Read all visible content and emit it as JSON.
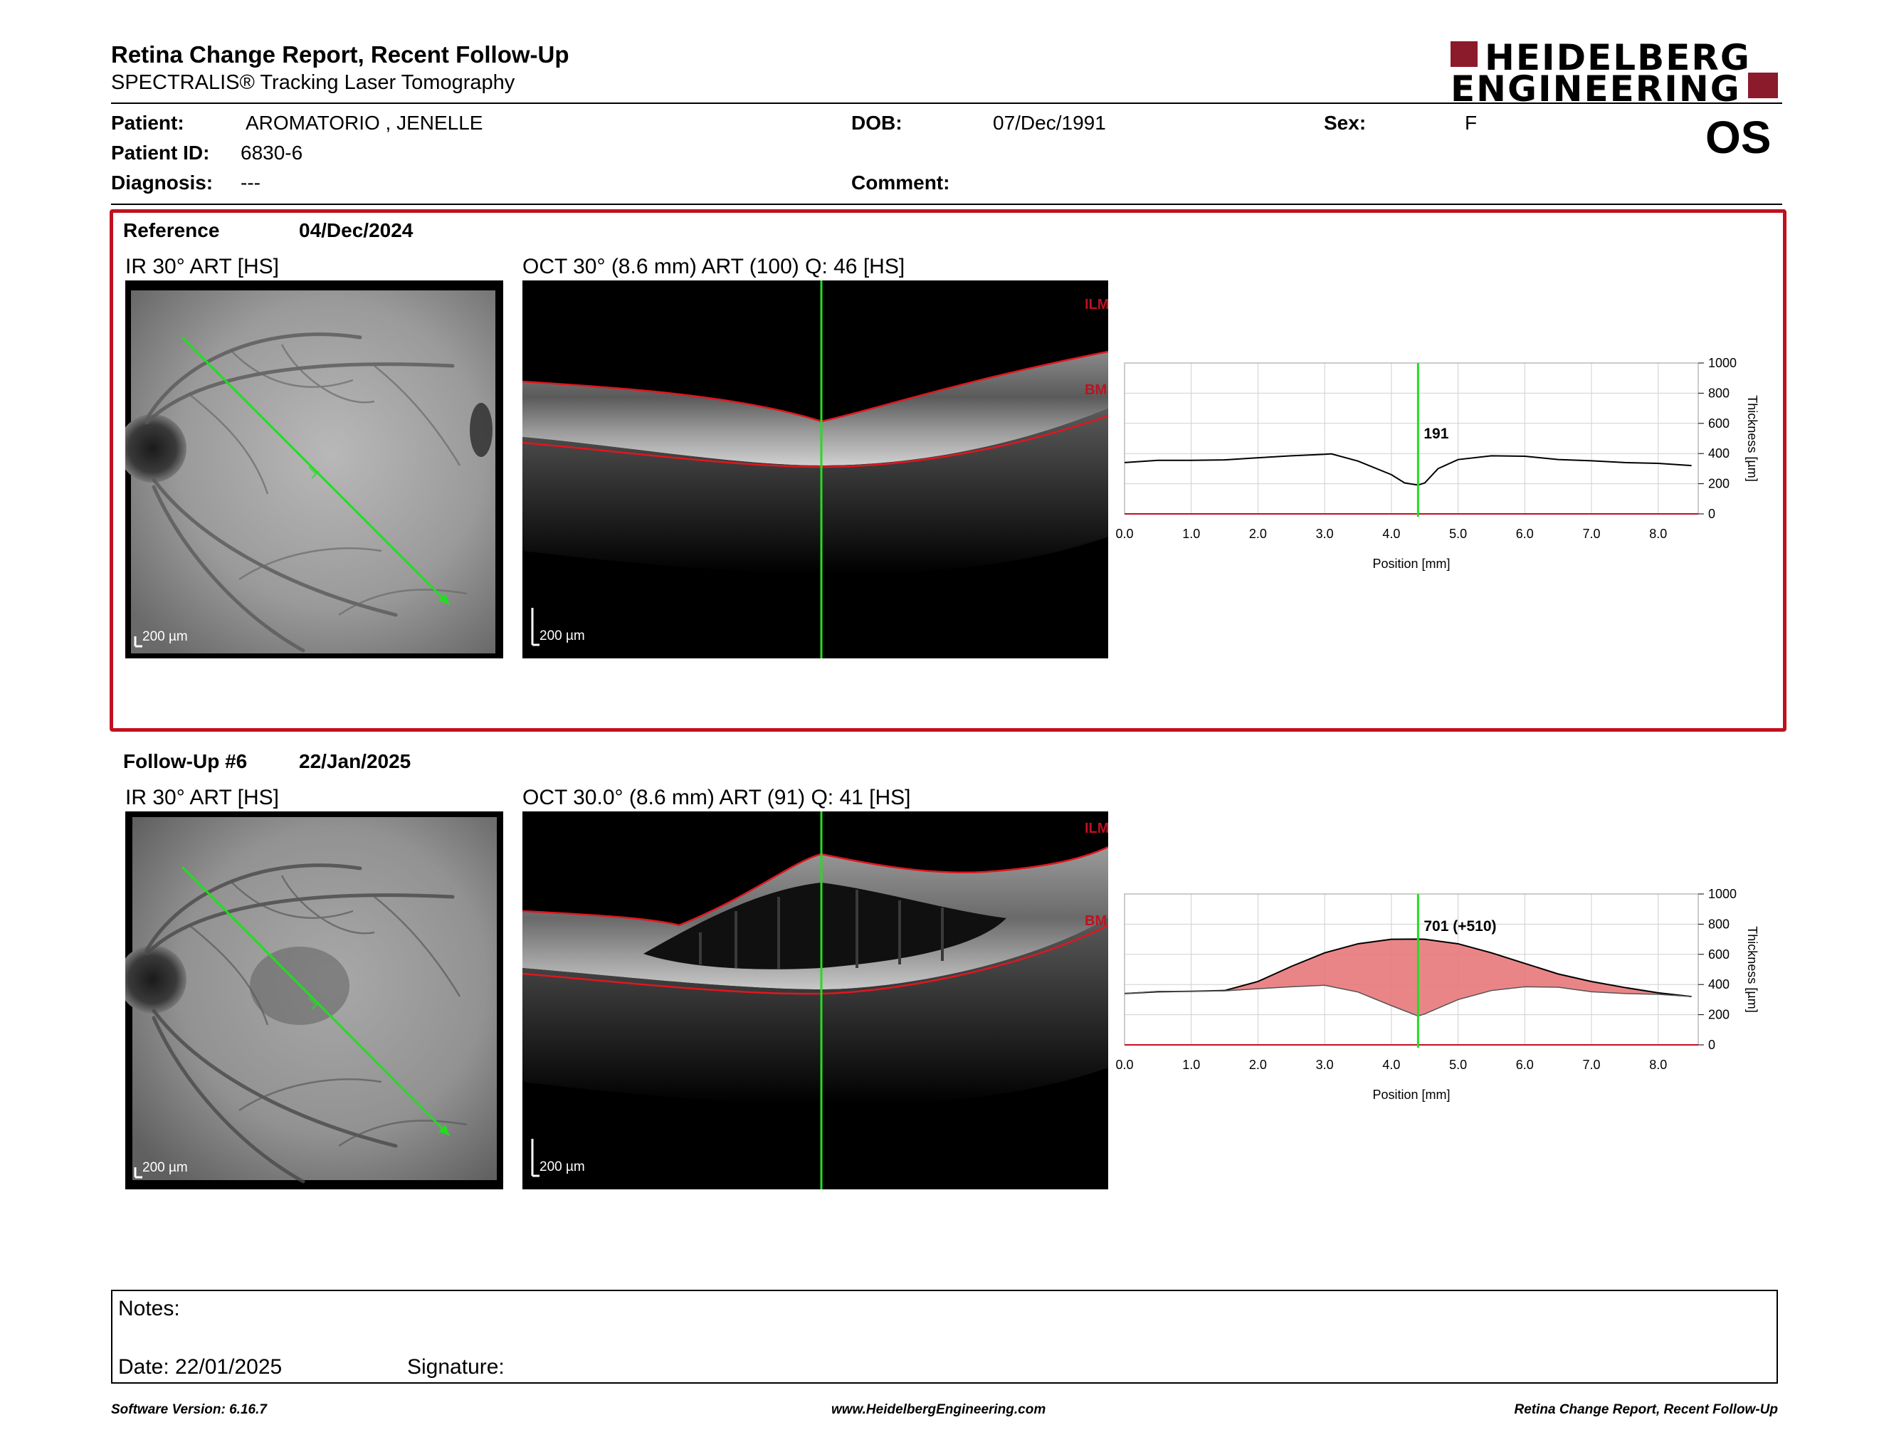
{
  "header": {
    "title": "Retina Change Report, Recent Follow-Up",
    "subtitle": "SPECTRALIS® Tracking Laser Tomography",
    "logo_line1": "HEIDELBERG",
    "logo_line2": "ENGINEERING",
    "eye": "OS"
  },
  "patient": {
    "name_label": "Patient:",
    "name": "AROMATORIO , JENELLE",
    "id_label": "Patient ID:",
    "id": "6830-6",
    "diagnosis_label": "Diagnosis:",
    "diagnosis": "---",
    "dob_label": "DOB:",
    "dob": "07/Dec/1991",
    "comment_label": "Comment:",
    "comment": "",
    "sex_label": "Sex:",
    "sex": "F"
  },
  "reference": {
    "label": "Reference",
    "date": "04/Dec/2024",
    "ir_caption": "IR 30° ART [HS]",
    "oct_caption": "OCT 30° (8.6 mm) ART (100) Q: 46 [HS]",
    "scale": "200 µm",
    "ilm": "ILM",
    "bm": "BM",
    "value_label": "191"
  },
  "followup": {
    "label": "Follow-Up #6",
    "date": "22/Jan/2025",
    "ir_caption": "IR 30° ART [HS]",
    "oct_caption": "OCT 30.0° (8.6 mm) ART (91) Q: 41 [HS]",
    "scale": "200 µm",
    "ilm": "ILM",
    "bm": "BM",
    "value_label": "701 (+510)"
  },
  "chart_data": [
    {
      "type": "line",
      "x": [
        0.0,
        0.5,
        1.0,
        1.5,
        2.0,
        2.5,
        3.0,
        3.1,
        3.5,
        4.0,
        4.2,
        4.4,
        4.5,
        4.7,
        5.0,
        5.5,
        6.0,
        6.5,
        7.0,
        7.5,
        8.0,
        8.5
      ],
      "series": [
        {
          "values": [
            340,
            355,
            355,
            358,
            372,
            385,
            395,
            398,
            350,
            260,
            205,
            191,
            205,
            300,
            360,
            385,
            382,
            360,
            352,
            340,
            335,
            320
          ]
        }
      ],
      "xlabel": "Position [mm]",
      "ylabel": "Thickness [µm]",
      "xticks": [
        "0.0",
        "1.0",
        "2.0",
        "3.0",
        "4.0",
        "5.0",
        "6.0",
        "7.0",
        "8.0"
      ],
      "yticks": [
        "0",
        "200",
        "400",
        "600",
        "800",
        "1000"
      ],
      "xlim": [
        0,
        8.6
      ],
      "ylim": [
        0,
        1000
      ],
      "cursor_x": 4.4,
      "grid": true
    },
    {
      "type": "area",
      "x": [
        0.0,
        0.5,
        1.0,
        1.5,
        2.0,
        2.5,
        3.0,
        3.5,
        4.0,
        4.4,
        4.5,
        5.0,
        5.5,
        6.0,
        6.5,
        7.0,
        7.5,
        8.0,
        8.5
      ],
      "series": [
        {
          "values": [
            340,
            352,
            355,
            360,
            420,
            520,
            610,
            670,
            700,
            701,
            700,
            670,
            610,
            540,
            470,
            420,
            380,
            345,
            320
          ]
        },
        {
          "values": [
            340,
            355,
            355,
            358,
            372,
            385,
            395,
            350,
            260,
            191,
            205,
            300,
            360,
            385,
            382,
            352,
            340,
            335,
            320
          ]
        }
      ],
      "xlabel": "Position [mm]",
      "ylabel": "Thickness [µm]",
      "xticks": [
        "0.0",
        "1.0",
        "2.0",
        "3.0",
        "4.0",
        "5.0",
        "6.0",
        "7.0",
        "8.0"
      ],
      "yticks": [
        "0",
        "200",
        "400",
        "600",
        "800",
        "1000"
      ],
      "xlim": [
        0,
        8.6
      ],
      "ylim": [
        0,
        1000
      ],
      "cursor_x": 4.4,
      "grid": true,
      "fill_color": "#e8787a"
    }
  ],
  "notes": {
    "notes_label": "Notes:",
    "date_label": "Date: 22/01/2025",
    "signature_label": "Signature:"
  },
  "footer": {
    "version": "Software Version: 6.16.7",
    "website": "www.HeidelbergEngineering.com",
    "report": "Retina Change Report, Recent Follow-Up"
  },
  "colors": {
    "accent": "#c0111f",
    "scan_line": "#22dd22",
    "logo": "#1a1a1a"
  }
}
